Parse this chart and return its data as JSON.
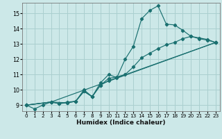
{
  "xlabel": "Humidex (Indice chaleur)",
  "background_color": "#cce8e8",
  "grid_color": "#aacfcf",
  "line_color": "#1a7070",
  "xlim": [
    -0.5,
    23.5
  ],
  "ylim": [
    8.6,
    15.7
  ],
  "yticks": [
    9,
    10,
    11,
    12,
    13,
    14,
    15
  ],
  "xticks": [
    0,
    1,
    2,
    3,
    4,
    5,
    6,
    7,
    8,
    9,
    10,
    11,
    12,
    13,
    14,
    15,
    16,
    17,
    18,
    19,
    20,
    21,
    22,
    23
  ],
  "lines": [
    {
      "x": [
        0,
        1,
        2,
        3,
        4,
        5,
        6,
        7,
        8,
        9,
        10,
        11,
        12,
        13,
        14,
        15,
        16,
        17,
        18,
        19,
        20,
        21,
        22,
        23
      ],
      "y": [
        9.0,
        8.75,
        9.0,
        9.2,
        9.1,
        9.2,
        9.25,
        10.0,
        9.55,
        10.45,
        11.0,
        10.8,
        12.0,
        12.85,
        14.65,
        15.2,
        15.5,
        14.3,
        14.25,
        13.9,
        13.5,
        13.4,
        13.3,
        13.1
      ]
    },
    {
      "x": [
        0,
        3,
        4,
        5,
        6,
        7,
        8,
        9,
        10,
        11,
        12,
        13,
        14,
        15,
        16,
        17,
        18,
        19,
        20,
        21,
        22,
        23
      ],
      "y": [
        9.0,
        9.2,
        9.1,
        9.15,
        9.25,
        9.9,
        9.55,
        10.3,
        10.75,
        10.85,
        11.0,
        11.5,
        12.1,
        12.4,
        12.7,
        12.95,
        13.1,
        13.35,
        13.5,
        13.35,
        13.25,
        13.1
      ]
    },
    {
      "x": [
        0,
        3,
        5,
        6,
        7,
        8,
        9,
        10,
        23
      ],
      "y": [
        9.0,
        9.2,
        9.15,
        9.25,
        9.9,
        9.55,
        10.3,
        10.6,
        13.1
      ]
    },
    {
      "x": [
        0,
        3,
        23
      ],
      "y": [
        9.0,
        9.2,
        13.1
      ]
    }
  ]
}
